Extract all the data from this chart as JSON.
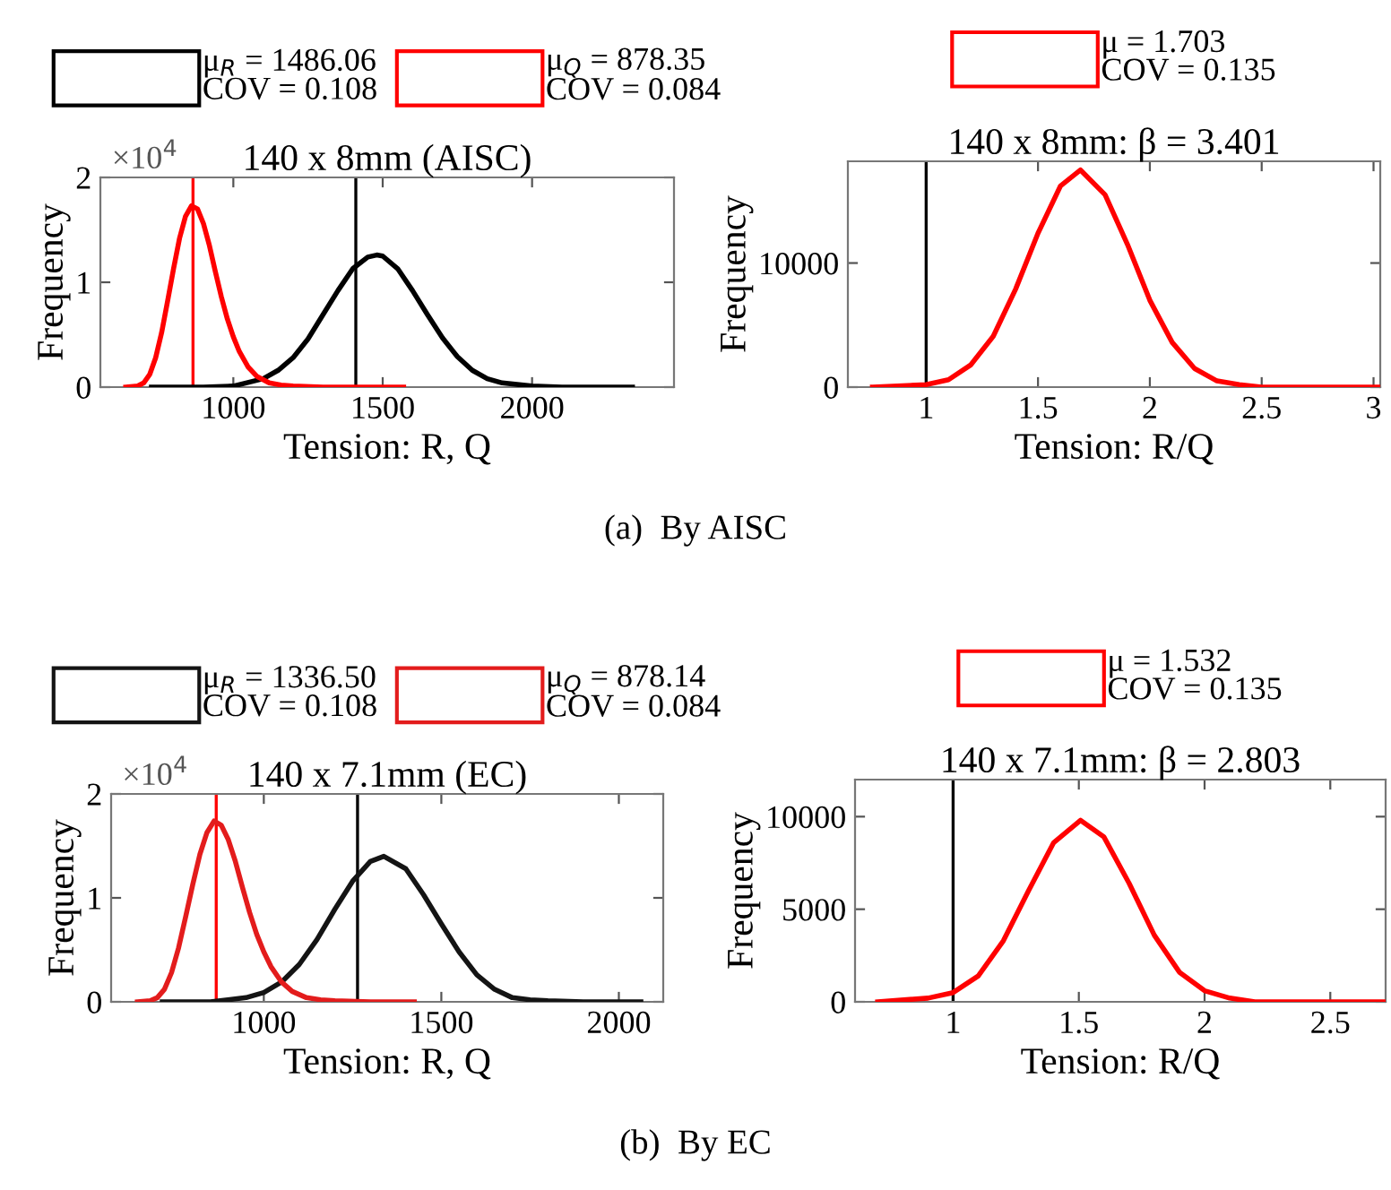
{
  "chart_data": [
    {
      "type": "line",
      "title": "140 x 8mm (AISC)",
      "xlabel": "Tension: R, Q",
      "ylabel": "Frequency",
      "legend": "top",
      "xlim": [
        555,
        2475
      ],
      "xticks": [
        1000,
        1500,
        2000
      ],
      "ylim": [
        0,
        2
      ],
      "yticks": [
        0,
        1,
        2
      ],
      "annotations": [
        "×10$^{4}$"
      ],
      "ref_lines": [
        {
          "axis": "x",
          "value": 865,
          "color": "#ff0000"
        },
        {
          "axis": "x",
          "value": 1410,
          "color": "#000000"
        }
      ],
      "series": [
        {
          "name": "μ$_{R}$ = 1486.06\nCOV = 0.108",
          "color": "#000000",
          "x": [
            726,
            900,
            1000,
            1100,
            1150,
            1200,
            1250,
            1300,
            1350,
            1400,
            1450,
            1480,
            1500,
            1550,
            1600,
            1650,
            1700,
            1750,
            1800,
            1850,
            1900,
            2000,
            2100,
            2336
          ],
          "values": [
            0,
            0,
            0.01,
            0.08,
            0.16,
            0.28,
            0.46,
            0.69,
            0.92,
            1.13,
            1.24,
            1.26,
            1.25,
            1.13,
            0.92,
            0.69,
            0.47,
            0.29,
            0.16,
            0.08,
            0.04,
            0.01,
            0,
            0
          ]
        },
        {
          "name": "μ$_{Q}$ = 878.35\nCOV = 0.084",
          "color": "#ff0000",
          "x": [
            640,
            680,
            700,
            720,
            740,
            760,
            780,
            800,
            820,
            840,
            860,
            880,
            900,
            920,
            940,
            960,
            980,
            1000,
            1020,
            1050,
            1080,
            1120,
            1160,
            1200,
            1300,
            1400,
            1570
          ],
          "values": [
            0,
            0.01,
            0.04,
            0.12,
            0.28,
            0.52,
            0.82,
            1.13,
            1.42,
            1.63,
            1.73,
            1.7,
            1.56,
            1.35,
            1.1,
            0.86,
            0.65,
            0.48,
            0.34,
            0.19,
            0.1,
            0.04,
            0.02,
            0.01,
            0,
            0,
            0
          ]
        }
      ]
    },
    {
      "type": "line",
      "title": "140 x 8mm: β = 3.401",
      "xlabel": "Tension: R/Q",
      "ylabel": "Frequency",
      "legend": "top",
      "xlim": [
        0.65,
        3.03
      ],
      "xticks": [
        1,
        1.5,
        2,
        2.5,
        3
      ],
      "ylim": [
        0,
        18200
      ],
      "yticks": [
        0,
        10000
      ],
      "annotations": [
        "(a)  By AISC"
      ],
      "ref_lines": [
        {
          "axis": "x",
          "value": 1,
          "color": "#000000"
        }
      ],
      "series": [
        {
          "name": "μ = 1.703\nCOV = 0.135",
          "color": "#ff0000",
          "x": [
            0.76,
            1.0,
            1.1,
            1.2,
            1.3,
            1.4,
            1.5,
            1.6,
            1.69,
            1.8,
            1.9,
            2.0,
            2.1,
            2.2,
            2.3,
            2.4,
            2.5,
            2.6,
            2.8,
            3.02
          ],
          "values": [
            0,
            200,
            600,
            1800,
            4100,
            7900,
            12400,
            16200,
            17500,
            15500,
            11500,
            7000,
            3600,
            1500,
            500,
            200,
            0,
            0,
            0,
            0
          ]
        }
      ]
    },
    {
      "type": "line",
      "title": "140 x 7.1mm (EC)",
      "xlabel": "Tension: R, Q",
      "ylabel": "Frequency",
      "legend": "top",
      "xlim": [
        570,
        2125
      ],
      "xticks": [
        1000,
        1500,
        2000
      ],
      "ylim": [
        0,
        2
      ],
      "yticks": [
        0,
        1,
        2
      ],
      "annotations": [
        "×10$^{4}$"
      ],
      "ref_lines": [
        {
          "axis": "x",
          "value": 866,
          "color": "#ff0000"
        },
        {
          "axis": "x",
          "value": 1264,
          "color": "#000000"
        }
      ],
      "series": [
        {
          "name": "μ$_{R}$ = 1336.50\nCOV = 0.108",
          "color": "#141414",
          "x": [
            714,
            850,
            950,
            1000,
            1050,
            1100,
            1150,
            1200,
            1250,
            1300,
            1338,
            1400,
            1450,
            1500,
            1550,
            1600,
            1650,
            1700,
            1750,
            1800,
            1900,
            2062
          ],
          "values": [
            0,
            0,
            0.04,
            0.09,
            0.19,
            0.36,
            0.6,
            0.89,
            1.16,
            1.35,
            1.4,
            1.28,
            1.03,
            0.75,
            0.48,
            0.26,
            0.12,
            0.04,
            0.02,
            0.01,
            0,
            0
          ]
        },
        {
          "name": "μ$_{Q}$ = 878.14\nCOV = 0.084",
          "color": "#e31c1c",
          "x": [
            644,
            680,
            700,
            720,
            740,
            760,
            780,
            800,
            820,
            840,
            860,
            880,
            900,
            920,
            940,
            960,
            980,
            1000,
            1020,
            1050,
            1080,
            1120,
            1160,
            1200,
            1300,
            1424
          ],
          "values": [
            0,
            0.01,
            0.04,
            0.12,
            0.28,
            0.52,
            0.82,
            1.13,
            1.42,
            1.63,
            1.74,
            1.7,
            1.56,
            1.35,
            1.1,
            0.86,
            0.65,
            0.48,
            0.34,
            0.19,
            0.1,
            0.04,
            0.02,
            0.01,
            0,
            0
          ]
        }
      ]
    },
    {
      "type": "line",
      "title": "140 x 7.1mm: β = 2.803",
      "xlabel": "Tension: R/Q",
      "ylabel": "Frequency",
      "legend": "top",
      "xlim": [
        0.61,
        2.72
      ],
      "xticks": [
        1,
        1.5,
        2,
        2.5
      ],
      "ylim": [
        0,
        12000
      ],
      "yticks": [
        0,
        5000,
        10000
      ],
      "annotations": [
        "(b)  By EC"
      ],
      "ref_lines": [
        {
          "axis": "x",
          "value": 1,
          "color": "#000000"
        }
      ],
      "series": [
        {
          "name": "μ = 1.532\nCOV = 0.135",
          "color": "#ff0000",
          "x": [
            0.7,
            0.9,
            1.0,
            1.1,
            1.2,
            1.3,
            1.4,
            1.507,
            1.6,
            1.7,
            1.8,
            1.9,
            2.0,
            2.1,
            2.2,
            2.3,
            2.5,
            2.72
          ],
          "values": [
            0,
            200,
            500,
            1400,
            3300,
            6000,
            8600,
            9800,
            8900,
            6400,
            3600,
            1600,
            600,
            200,
            0,
            0,
            0,
            0
          ]
        }
      ]
    }
  ]
}
